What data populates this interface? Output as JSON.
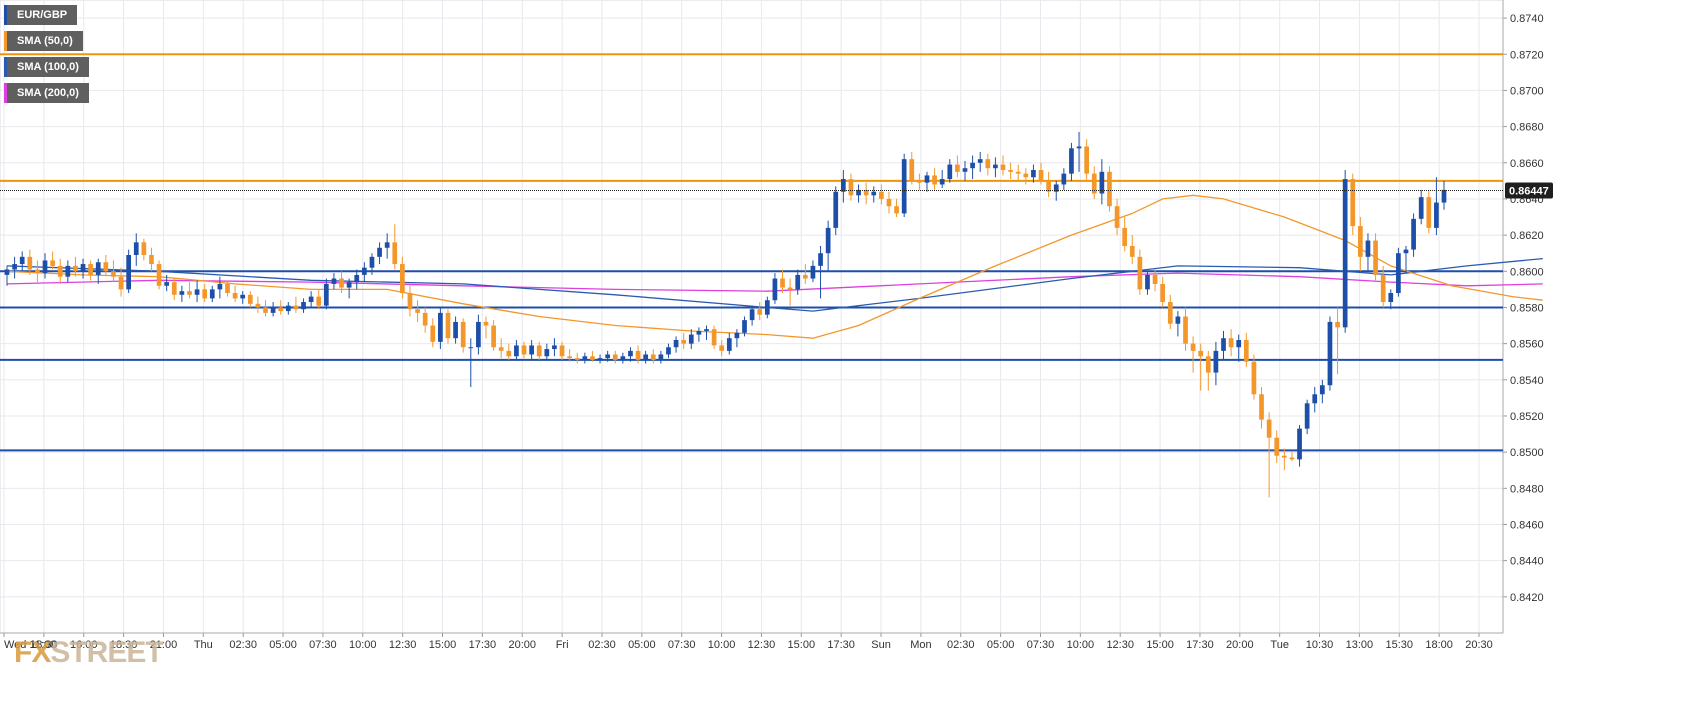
{
  "colors": {
    "up": "#1e4fa8",
    "down": "#f4972b",
    "sma50": "#f4972b",
    "sma100": "#2a5bb0",
    "sma200": "#de3fe0",
    "resistance": "#f0950a",
    "support": "#1e4fa8",
    "grid": "#e8e8ee",
    "price_tag_bg": "#1f1f1f"
  },
  "legend": [
    {
      "label": "EUR/GBP",
      "color": "#1e4fa8"
    },
    {
      "label": "SMA (50,0)",
      "color": "#f4972b"
    },
    {
      "label": "SMA (100,0)",
      "color": "#2a5bb0"
    },
    {
      "label": "SMA (200,0)",
      "color": "#de3fe0"
    }
  ],
  "watermark": {
    "a": "FX",
    "b": "STREET"
  },
  "price_tag": "0.86447",
  "chart_data": {
    "type": "candlestick",
    "symbol": "EUR/GBP",
    "ylim": [
      0.84,
      0.875
    ],
    "y_ticks": [
      "0.8420",
      "0.8440",
      "0.8460",
      "0.8480",
      "0.8500",
      "0.8520",
      "0.8540",
      "0.8560",
      "0.8580",
      "0.8600",
      "0.8620",
      "0.8640",
      "0.8660",
      "0.8680",
      "0.8700",
      "0.8720",
      "0.8740"
    ],
    "x_ticks": [
      "Wed 11:00",
      "13:30",
      "16:00",
      "18:30",
      "21:00",
      "Thu",
      "02:30",
      "05:00",
      "07:30",
      "10:00",
      "12:30",
      "15:00",
      "17:30",
      "20:00",
      "Fri",
      "02:30",
      "05:00",
      "07:30",
      "10:00",
      "12:30",
      "15:00",
      "17:30",
      "Sun",
      "Mon",
      "02:30",
      "05:00",
      "07:30",
      "10:00",
      "12:30",
      "15:00",
      "17:30",
      "20:00",
      "Tue",
      "10:30",
      "13:00",
      "15:30",
      "18:00",
      "20:30"
    ],
    "last_price": 0.86447,
    "horizontal_levels": {
      "resistance": [
        0.872,
        0.865
      ],
      "support": [
        0.86,
        0.858,
        0.8551,
        0.8501
      ]
    },
    "candles": [
      [
        0.8598,
        0.8603,
        0.8592,
        0.8601
      ],
      [
        0.8601,
        0.8608,
        0.8596,
        0.8604
      ],
      [
        0.8604,
        0.8611,
        0.86,
        0.8608
      ],
      [
        0.8608,
        0.8612,
        0.8598,
        0.8601
      ],
      [
        0.8601,
        0.8606,
        0.8594,
        0.8599
      ],
      [
        0.8599,
        0.861,
        0.8596,
        0.8606
      ],
      [
        0.8606,
        0.8611,
        0.8601,
        0.8603
      ],
      [
        0.8603,
        0.8607,
        0.8593,
        0.8597
      ],
      [
        0.8597,
        0.8606,
        0.8594,
        0.8603
      ],
      [
        0.8603,
        0.8608,
        0.8597,
        0.86
      ],
      [
        0.86,
        0.8607,
        0.8596,
        0.8604
      ],
      [
        0.8604,
        0.8606,
        0.8595,
        0.8598
      ],
      [
        0.8598,
        0.8607,
        0.8593,
        0.8605
      ],
      [
        0.8605,
        0.8609,
        0.8598,
        0.86
      ],
      [
        0.86,
        0.8606,
        0.8594,
        0.8597
      ],
      [
        0.8597,
        0.8602,
        0.8586,
        0.859
      ],
      [
        0.859,
        0.8612,
        0.8588,
        0.8609
      ],
      [
        0.8609,
        0.8621,
        0.8603,
        0.8616
      ],
      [
        0.8616,
        0.8618,
        0.8606,
        0.8609
      ],
      [
        0.8609,
        0.8613,
        0.86,
        0.8604
      ],
      [
        0.8604,
        0.8606,
        0.859,
        0.8592
      ],
      [
        0.8592,
        0.8598,
        0.8589,
        0.8594
      ],
      [
        0.8594,
        0.8596,
        0.8584,
        0.8587
      ],
      [
        0.8587,
        0.8592,
        0.8583,
        0.8589
      ],
      [
        0.8589,
        0.8594,
        0.8585,
        0.8587
      ],
      [
        0.8587,
        0.8595,
        0.8583,
        0.859
      ],
      [
        0.859,
        0.8593,
        0.8583,
        0.8585
      ],
      [
        0.8585,
        0.8592,
        0.8583,
        0.859
      ],
      [
        0.859,
        0.8597,
        0.8585,
        0.8593
      ],
      [
        0.8593,
        0.8595,
        0.8586,
        0.8588
      ],
      [
        0.8588,
        0.8592,
        0.8583,
        0.8585
      ],
      [
        0.8585,
        0.8589,
        0.8582,
        0.8587
      ],
      [
        0.8587,
        0.8589,
        0.858,
        0.8582
      ],
      [
        0.8582,
        0.8586,
        0.8577,
        0.858
      ],
      [
        0.858,
        0.8584,
        0.8575,
        0.8577
      ],
      [
        0.8577,
        0.8583,
        0.8575,
        0.858
      ],
      [
        0.858,
        0.8584,
        0.8576,
        0.8578
      ],
      [
        0.8578,
        0.8583,
        0.8576,
        0.8581
      ],
      [
        0.8581,
        0.8586,
        0.8577,
        0.8579
      ],
      [
        0.8579,
        0.8585,
        0.8577,
        0.8583
      ],
      [
        0.8583,
        0.8589,
        0.858,
        0.8586
      ],
      [
        0.8586,
        0.859,
        0.8579,
        0.8581
      ],
      [
        0.8581,
        0.8596,
        0.8579,
        0.8593
      ],
      [
        0.8593,
        0.8599,
        0.859,
        0.8596
      ],
      [
        0.8596,
        0.86,
        0.8588,
        0.8591
      ],
      [
        0.8591,
        0.8596,
        0.8585,
        0.8594
      ],
      [
        0.8594,
        0.8601,
        0.859,
        0.8598
      ],
      [
        0.8598,
        0.8605,
        0.8594,
        0.8602
      ],
      [
        0.8602,
        0.861,
        0.8598,
        0.8608
      ],
      [
        0.8608,
        0.8616,
        0.8604,
        0.8613
      ],
      [
        0.8613,
        0.8621,
        0.8607,
        0.8616
      ],
      [
        0.8616,
        0.8626,
        0.8601,
        0.8604
      ],
      [
        0.8604,
        0.8608,
        0.8585,
        0.8588
      ],
      [
        0.8588,
        0.8592,
        0.8575,
        0.8579
      ],
      [
        0.8579,
        0.8584,
        0.8572,
        0.8577
      ],
      [
        0.8577,
        0.858,
        0.8566,
        0.857
      ],
      [
        0.857,
        0.8574,
        0.8558,
        0.8561
      ],
      [
        0.8561,
        0.858,
        0.8557,
        0.8577
      ],
      [
        0.8577,
        0.8579,
        0.856,
        0.8563
      ],
      [
        0.8563,
        0.8575,
        0.856,
        0.8572
      ],
      [
        0.8572,
        0.8574,
        0.8555,
        0.8558
      ],
      [
        0.8558,
        0.8563,
        0.8536,
        0.8558
      ],
      [
        0.8558,
        0.8576,
        0.8554,
        0.8572
      ],
      [
        0.8572,
        0.8575,
        0.8563,
        0.857
      ],
      [
        0.857,
        0.8573,
        0.8556,
        0.8558
      ],
      [
        0.8558,
        0.8563,
        0.8552,
        0.8556
      ],
      [
        0.8556,
        0.856,
        0.8551,
        0.8553
      ],
      [
        0.8553,
        0.8562,
        0.8551,
        0.8559
      ],
      [
        0.8559,
        0.8561,
        0.8552,
        0.8554
      ],
      [
        0.8554,
        0.8562,
        0.8551,
        0.8559
      ],
      [
        0.8559,
        0.8561,
        0.8551,
        0.8553
      ],
      [
        0.8553,
        0.856,
        0.8551,
        0.8557
      ],
      [
        0.8557,
        0.8563,
        0.8553,
        0.8559
      ],
      [
        0.8559,
        0.8561,
        0.8551,
        0.8553
      ],
      [
        0.8553,
        0.8557,
        0.855,
        0.8552
      ],
      [
        0.8552,
        0.8555,
        0.8549,
        0.8551
      ],
      [
        0.8551,
        0.8555,
        0.8549,
        0.8553
      ],
      [
        0.8553,
        0.8556,
        0.855,
        0.8551
      ],
      [
        0.8551,
        0.8554,
        0.8549,
        0.8552
      ],
      [
        0.8552,
        0.8556,
        0.855,
        0.8554
      ],
      [
        0.8554,
        0.8556,
        0.8549,
        0.8551
      ],
      [
        0.8551,
        0.8555,
        0.8549,
        0.8553
      ],
      [
        0.8553,
        0.8558,
        0.855,
        0.8556
      ],
      [
        0.8556,
        0.8559,
        0.8549,
        0.8551
      ],
      [
        0.8551,
        0.8556,
        0.8549,
        0.8554
      ],
      [
        0.8554,
        0.8557,
        0.8549,
        0.8551
      ],
      [
        0.8551,
        0.8556,
        0.8549,
        0.8554
      ],
      [
        0.8554,
        0.856,
        0.8552,
        0.8558
      ],
      [
        0.8558,
        0.8564,
        0.8555,
        0.8562
      ],
      [
        0.8562,
        0.8566,
        0.8557,
        0.856
      ],
      [
        0.856,
        0.8568,
        0.8557,
        0.8565
      ],
      [
        0.8565,
        0.8569,
        0.8561,
        0.8567
      ],
      [
        0.8567,
        0.857,
        0.8562,
        0.8568
      ],
      [
        0.8568,
        0.857,
        0.8557,
        0.8559
      ],
      [
        0.8559,
        0.8562,
        0.8553,
        0.8556
      ],
      [
        0.8556,
        0.8566,
        0.8554,
        0.8563
      ],
      [
        0.8563,
        0.8568,
        0.8558,
        0.8566
      ],
      [
        0.8566,
        0.8575,
        0.8564,
        0.8573
      ],
      [
        0.8573,
        0.8581,
        0.857,
        0.8579
      ],
      [
        0.8579,
        0.8583,
        0.8573,
        0.8576
      ],
      [
        0.8576,
        0.8586,
        0.8574,
        0.8584
      ],
      [
        0.8584,
        0.8599,
        0.8582,
        0.8596
      ],
      [
        0.8596,
        0.8601,
        0.8588,
        0.8591
      ],
      [
        0.8591,
        0.8596,
        0.8581,
        0.859
      ],
      [
        0.859,
        0.8601,
        0.8587,
        0.8598
      ],
      [
        0.8598,
        0.8604,
        0.8593,
        0.8596
      ],
      [
        0.8596,
        0.8606,
        0.8594,
        0.8603
      ],
      [
        0.8603,
        0.8614,
        0.8585,
        0.861
      ],
      [
        0.861,
        0.8628,
        0.86,
        0.8624
      ],
      [
        0.8624,
        0.8647,
        0.862,
        0.8644
      ],
      [
        0.8644,
        0.8656,
        0.8638,
        0.8651
      ],
      [
        0.8651,
        0.8654,
        0.8639,
        0.8642
      ],
      [
        0.8642,
        0.8648,
        0.8638,
        0.8645
      ],
      [
        0.8645,
        0.8649,
        0.8637,
        0.8642
      ],
      [
        0.8642,
        0.8647,
        0.8638,
        0.8644
      ],
      [
        0.8644,
        0.8648,
        0.8637,
        0.864
      ],
      [
        0.864,
        0.8644,
        0.8632,
        0.8636
      ],
      [
        0.8636,
        0.864,
        0.863,
        0.8632
      ],
      [
        0.8632,
        0.8665,
        0.863,
        0.8662
      ],
      [
        0.8662,
        0.8666,
        0.8648,
        0.865
      ],
      [
        0.865,
        0.8654,
        0.8645,
        0.8649
      ],
      [
        0.8649,
        0.8655,
        0.8644,
        0.8653
      ],
      [
        0.8653,
        0.8657,
        0.8645,
        0.8648
      ],
      [
        0.8648,
        0.8656,
        0.8646,
        0.8651
      ],
      [
        0.8651,
        0.8662,
        0.8649,
        0.8659
      ],
      [
        0.8659,
        0.8664,
        0.8652,
        0.8655
      ],
      [
        0.8655,
        0.8661,
        0.865,
        0.8657
      ],
      [
        0.8657,
        0.8664,
        0.8651,
        0.866
      ],
      [
        0.866,
        0.8666,
        0.8655,
        0.8662
      ],
      [
        0.8662,
        0.8665,
        0.8653,
        0.8657
      ],
      [
        0.8657,
        0.8663,
        0.8652,
        0.8659
      ],
      [
        0.8659,
        0.8664,
        0.8653,
        0.8656
      ],
      [
        0.8656,
        0.866,
        0.8651,
        0.8655
      ],
      [
        0.8655,
        0.8659,
        0.865,
        0.8654
      ],
      [
        0.8654,
        0.8657,
        0.8648,
        0.8652
      ],
      [
        0.8652,
        0.8659,
        0.8649,
        0.8656
      ],
      [
        0.8656,
        0.866,
        0.8648,
        0.865
      ],
      [
        0.865,
        0.8655,
        0.8641,
        0.8644
      ],
      [
        0.8644,
        0.865,
        0.8639,
        0.8648
      ],
      [
        0.8648,
        0.8657,
        0.8645,
        0.8654
      ],
      [
        0.8654,
        0.8671,
        0.865,
        0.8668
      ],
      [
        0.8668,
        0.8677,
        0.8655,
        0.8669
      ],
      [
        0.8669,
        0.8673,
        0.865,
        0.8654
      ],
      [
        0.8654,
        0.8658,
        0.864,
        0.8643
      ],
      [
        0.8643,
        0.8662,
        0.8637,
        0.8655
      ],
      [
        0.8655,
        0.8658,
        0.8633,
        0.8636
      ],
      [
        0.8636,
        0.864,
        0.862,
        0.8624
      ],
      [
        0.8624,
        0.863,
        0.8611,
        0.8614
      ],
      [
        0.8614,
        0.862,
        0.8604,
        0.8608
      ],
      [
        0.8608,
        0.8612,
        0.8587,
        0.859
      ],
      [
        0.859,
        0.86,
        0.8587,
        0.8598
      ],
      [
        0.8598,
        0.8601,
        0.8589,
        0.8593
      ],
      [
        0.8593,
        0.8597,
        0.858,
        0.8583
      ],
      [
        0.8583,
        0.8587,
        0.8568,
        0.8571
      ],
      [
        0.8571,
        0.8578,
        0.8564,
        0.8575
      ],
      [
        0.8575,
        0.858,
        0.8556,
        0.856
      ],
      [
        0.856,
        0.8564,
        0.8544,
        0.8556
      ],
      [
        0.8556,
        0.856,
        0.8534,
        0.8553
      ],
      [
        0.8553,
        0.8556,
        0.8534,
        0.8544
      ],
      [
        0.8544,
        0.8561,
        0.8537,
        0.8556
      ],
      [
        0.8556,
        0.8567,
        0.8551,
        0.8563
      ],
      [
        0.8563,
        0.8568,
        0.8553,
        0.8558
      ],
      [
        0.8558,
        0.8565,
        0.855,
        0.8562
      ],
      [
        0.8562,
        0.8566,
        0.8547,
        0.855
      ],
      [
        0.855,
        0.8554,
        0.8529,
        0.8532
      ],
      [
        0.8532,
        0.8536,
        0.8513,
        0.8518
      ],
      [
        0.8518,
        0.8522,
        0.8475,
        0.8508
      ],
      [
        0.8508,
        0.8512,
        0.8494,
        0.8498
      ],
      [
        0.8498,
        0.8502,
        0.849,
        0.8497
      ],
      [
        0.8497,
        0.85,
        0.8495,
        0.8496
      ],
      [
        0.8496,
        0.8515,
        0.8492,
        0.8513
      ],
      [
        0.8513,
        0.8529,
        0.851,
        0.8527
      ],
      [
        0.8527,
        0.8536,
        0.8522,
        0.8532
      ],
      [
        0.8532,
        0.854,
        0.8527,
        0.8537
      ],
      [
        0.8537,
        0.8575,
        0.8534,
        0.8572
      ],
      [
        0.8572,
        0.858,
        0.8543,
        0.8569
      ],
      [
        0.8569,
        0.8656,
        0.8566,
        0.8651
      ],
      [
        0.8651,
        0.8654,
        0.862,
        0.8625
      ],
      [
        0.8625,
        0.863,
        0.86,
        0.8608
      ],
      [
        0.8608,
        0.8621,
        0.86,
        0.8617
      ],
      [
        0.8617,
        0.8621,
        0.8594,
        0.8598
      ],
      [
        0.8598,
        0.8603,
        0.858,
        0.8583
      ],
      [
        0.8583,
        0.859,
        0.8579,
        0.8588
      ],
      [
        0.8588,
        0.8613,
        0.8586,
        0.861
      ],
      [
        0.861,
        0.8614,
        0.8599,
        0.8612
      ],
      [
        0.8612,
        0.8632,
        0.8608,
        0.8629
      ],
      [
        0.8629,
        0.8645,
        0.8626,
        0.8641
      ],
      [
        0.8641,
        0.8645,
        0.8621,
        0.8624
      ],
      [
        0.8624,
        0.8652,
        0.862,
        0.8638
      ],
      [
        0.8638,
        0.865,
        0.8634,
        0.8645
      ]
    ],
    "sma50": [
      [
        0,
        0.86
      ],
      [
        10,
        0.8598
      ],
      [
        20,
        0.8597
      ],
      [
        30,
        0.8593
      ],
      [
        40,
        0.859
      ],
      [
        50,
        0.859
      ],
      [
        60,
        0.8582
      ],
      [
        70,
        0.8575
      ],
      [
        80,
        0.857
      ],
      [
        90,
        0.8567
      ],
      [
        100,
        0.8565
      ],
      [
        106,
        0.8563
      ],
      [
        112,
        0.857
      ],
      [
        120,
        0.8585
      ],
      [
        130,
        0.8603
      ],
      [
        140,
        0.862
      ],
      [
        148,
        0.8632
      ],
      [
        152,
        0.864
      ],
      [
        156,
        0.8642
      ],
      [
        160,
        0.864
      ],
      [
        168,
        0.863
      ],
      [
        176,
        0.8617
      ],
      [
        182,
        0.8603
      ],
      [
        190,
        0.8592
      ],
      [
        198,
        0.8586
      ],
      [
        202,
        0.8584
      ]
    ],
    "sma100": [
      [
        0,
        0.8603
      ],
      [
        20,
        0.86
      ],
      [
        40,
        0.8595
      ],
      [
        60,
        0.8593
      ],
      [
        80,
        0.8587
      ],
      [
        100,
        0.858
      ],
      [
        106,
        0.8578
      ],
      [
        120,
        0.8585
      ],
      [
        140,
        0.8596
      ],
      [
        154,
        0.8603
      ],
      [
        170,
        0.8602
      ],
      [
        182,
        0.8598
      ],
      [
        192,
        0.8603
      ],
      [
        202,
        0.8607
      ]
    ],
    "sma200": [
      [
        0,
        0.8593
      ],
      [
        20,
        0.8595
      ],
      [
        40,
        0.8594
      ],
      [
        60,
        0.8592
      ],
      [
        80,
        0.859
      ],
      [
        100,
        0.8589
      ],
      [
        120,
        0.8593
      ],
      [
        140,
        0.8597
      ],
      [
        154,
        0.8599
      ],
      [
        170,
        0.8597
      ],
      [
        182,
        0.8594
      ],
      [
        192,
        0.8592
      ],
      [
        202,
        0.8593
      ]
    ]
  }
}
